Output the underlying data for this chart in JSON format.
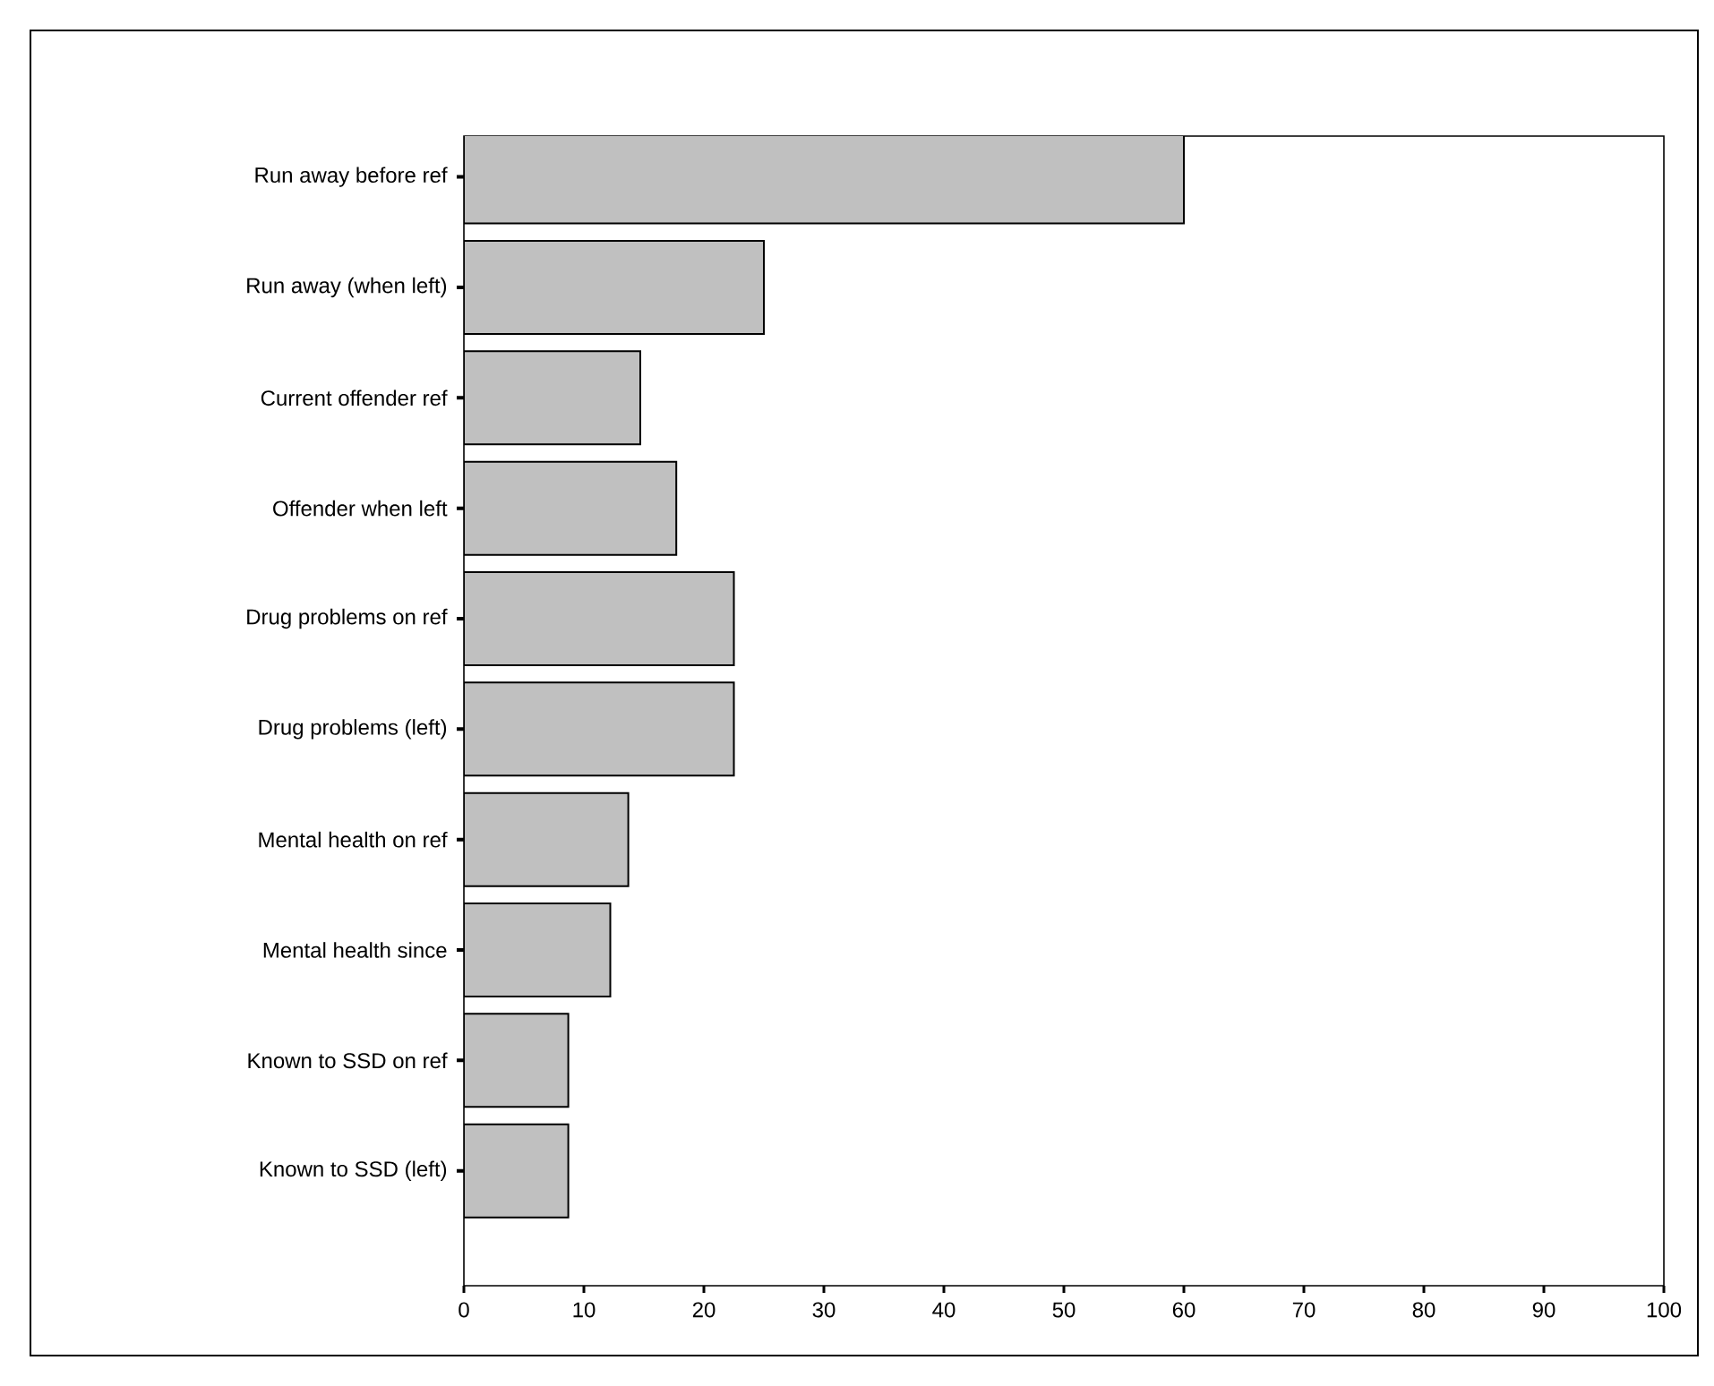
{
  "chart_data": {
    "type": "bar",
    "orientation": "horizontal",
    "categories": [
      "Run away before ref",
      "Run away (when left)",
      "Current offender ref",
      "Offender when left",
      "Drug problems on ref",
      "Drug problems (left)",
      "Mental health on ref",
      "Mental health since",
      "Known to SSD on ref",
      "Known to SSD (left)"
    ],
    "values": [
      60,
      25,
      14.7,
      17.7,
      22.5,
      22.5,
      13.7,
      12.2,
      8.7,
      8.7
    ],
    "color": "#c0c0c0",
    "xlim": [
      0,
      100
    ],
    "xticks": [
      0,
      10,
      20,
      30,
      40,
      50,
      60,
      70,
      80,
      90,
      100
    ]
  }
}
